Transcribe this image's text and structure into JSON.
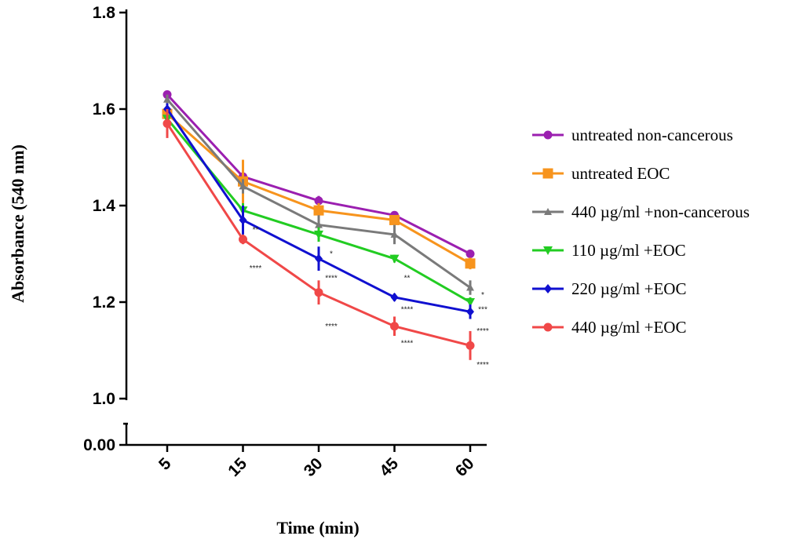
{
  "chart_data": {
    "type": "line",
    "xlabel": "Time (min)",
    "ylabel": "Absorbance (540 nm)",
    "categories": [
      "5",
      "15",
      "30",
      "45",
      "60"
    ],
    "y_ticks": [
      "1.0",
      "1.2",
      "1.4",
      "1.6",
      "1.8"
    ],
    "y_break_tick": "0.00",
    "ylim": [
      1.0,
      1.8
    ],
    "axis_break": true,
    "legend_position": "right",
    "series": [
      {
        "name": "untreated non-cancerous",
        "color": "#9b1fb0",
        "marker": "circle",
        "values": [
          1.63,
          1.46,
          1.41,
          1.38,
          1.3
        ],
        "errors": [
          0.005,
          0.01,
          0.01,
          0.008,
          0.006
        ]
      },
      {
        "name": "untreated EOC",
        "color": "#f7941d",
        "marker": "square",
        "values": [
          1.59,
          1.45,
          1.39,
          1.37,
          1.28
        ],
        "errors": [
          0.02,
          0.045,
          0.015,
          0.01,
          0.012
        ]
      },
      {
        "name": "440 µg/ml +non-cancerous",
        "color": "#7a7a7a",
        "marker": "triangle-up",
        "values": [
          1.62,
          1.44,
          1.36,
          1.34,
          1.23
        ],
        "errors": [
          0.01,
          0.015,
          0.02,
          0.02,
          0.015
        ]
      },
      {
        "name": "110 µg/ml +EOC",
        "color": "#22cc22",
        "marker": "triangle-down",
        "values": [
          1.58,
          1.39,
          1.34,
          1.29,
          1.2
        ],
        "errors": [
          0.01,
          0.015,
          0.015,
          0.008,
          0.01
        ]
      },
      {
        "name": "220 µg/ml +EOC",
        "color": "#1010d0",
        "marker": "diamond",
        "values": [
          1.6,
          1.37,
          1.29,
          1.21,
          1.18
        ],
        "errors": [
          0.012,
          0.03,
          0.025,
          0.008,
          0.015
        ]
      },
      {
        "name": "440 µg/ml +EOC",
        "color": "#f04848",
        "marker": "circle",
        "values": [
          1.57,
          1.33,
          1.22,
          1.15,
          1.11
        ],
        "errors": [
          0.03,
          0.01,
          0.025,
          0.02,
          0.03
        ]
      }
    ],
    "annotations": [
      {
        "x": "15",
        "y": 1.345,
        "text": "**"
      },
      {
        "x": "15",
        "y": 1.265,
        "text": "****"
      },
      {
        "x": "30",
        "y": 1.295,
        "text": "*"
      },
      {
        "x": "30",
        "y": 1.245,
        "text": "****"
      },
      {
        "x": "30",
        "y": 1.145,
        "text": "****"
      },
      {
        "x": "45",
        "y": 1.245,
        "text": "**"
      },
      {
        "x": "45",
        "y": 1.18,
        "text": "****"
      },
      {
        "x": "45",
        "y": 1.11,
        "text": "****"
      },
      {
        "x": "60",
        "y": 1.21,
        "text": "*"
      },
      {
        "x": "60",
        "y": 1.18,
        "text": "***"
      },
      {
        "x": "60",
        "y": 1.135,
        "text": "****"
      },
      {
        "x": "60",
        "y": 1.065,
        "text": "****"
      }
    ]
  }
}
